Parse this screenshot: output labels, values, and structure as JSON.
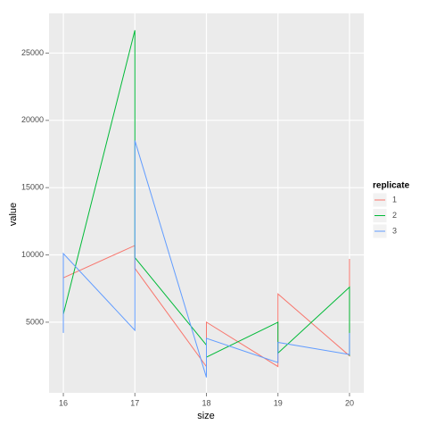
{
  "chart_data": {
    "type": "line",
    "x_label": "size",
    "y_label": "value",
    "xlim": [
      15.8,
      20.2
    ],
    "xticks": [
      16,
      17,
      18,
      19,
      20
    ],
    "ylim": [
      -250,
      27950
    ],
    "yticks": [
      5000,
      10000,
      15000,
      20000,
      25000
    ],
    "grid": true,
    "legend_title": "replicate",
    "legend_position": "right",
    "series": [
      {
        "name": "1",
        "color": "#F8766D",
        "x": [
          16,
          17,
          17,
          18,
          18,
          19,
          19,
          20,
          20
        ],
        "values": [
          8300,
          10700,
          9000,
          1700,
          5000,
          1700,
          7100,
          2500,
          9700
        ]
      },
      {
        "name": "2",
        "color": "#00BA38",
        "x": [
          16,
          17,
          17,
          18,
          18,
          19,
          19,
          20,
          20
        ],
        "values": [
          5600,
          26700,
          9800,
          3300,
          2400,
          5000,
          2700,
          7600,
          2500
        ]
      },
      {
        "name": "3",
        "color": "#619CFF",
        "x": [
          16,
          16,
          17,
          17,
          18,
          18,
          19,
          19,
          20,
          20
        ],
        "values": [
          4200,
          10100,
          4400,
          18500,
          900,
          3800,
          2000,
          3500,
          2600,
          4200
        ]
      }
    ]
  }
}
